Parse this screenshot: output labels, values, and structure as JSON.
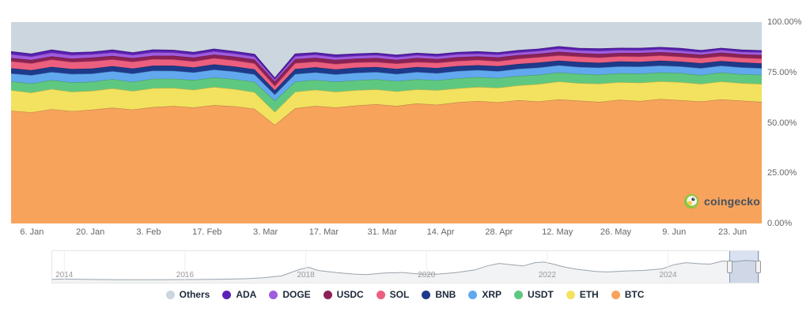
{
  "watermark": {
    "text": "coingecko"
  },
  "chart_data": {
    "type": "area",
    "stacking": "percent",
    "title": "",
    "xlabel": "",
    "ylabel": "",
    "ylim": [
      0,
      100
    ],
    "grid": false,
    "legend_position": "bottom",
    "y_axis": {
      "side": "right",
      "ticks": [
        {
          "label": "100.00%",
          "value": 100
        },
        {
          "label": "75.00%",
          "value": 75
        },
        {
          "label": "50.00%",
          "value": 50
        },
        {
          "label": "25.00%",
          "value": 25
        },
        {
          "label": "0.00%",
          "value": 0
        }
      ]
    },
    "x_axis": {
      "ticks": [
        {
          "label": "6. Jan",
          "pos": 0.0278
        },
        {
          "label": "20. Jan",
          "pos": 0.1056
        },
        {
          "label": "3. Feb",
          "pos": 0.1833
        },
        {
          "label": "17. Feb",
          "pos": 0.2611
        },
        {
          "label": "3. Mar",
          "pos": 0.3389
        },
        {
          "label": "17. Mar",
          "pos": 0.4167
        },
        {
          "label": "31. Mar",
          "pos": 0.4944
        },
        {
          "label": "14. Apr",
          "pos": 0.5722
        },
        {
          "label": "28. Apr",
          "pos": 0.65
        },
        {
          "label": "12. May",
          "pos": 0.7278
        },
        {
          "label": "26. May",
          "pos": 0.8056
        },
        {
          "label": "9. Jun",
          "pos": 0.8833
        },
        {
          "label": "23. Jun",
          "pos": 0.9611
        }
      ]
    },
    "series": [
      {
        "name": "BTC",
        "color": "#f7a35c",
        "values": [
          56.0,
          55.2,
          56.8,
          55.8,
          56.5,
          57.5,
          56.6,
          57.8,
          58.3,
          57.6,
          58.8,
          58.2,
          57.0,
          49.0,
          57.2,
          58.4,
          57.6,
          58.6,
          59.2,
          58.4,
          59.6,
          59.0,
          60.2,
          60.8,
          60.2,
          61.2,
          60.6,
          61.6,
          61.0,
          60.4,
          61.4,
          60.8,
          61.8,
          61.2,
          60.6,
          61.6,
          61.0,
          60.4
        ]
      },
      {
        "name": "ETH",
        "color": "#f2e25f",
        "values": [
          10.2,
          9.8,
          10.0,
          9.6,
          9.4,
          9.6,
          9.2,
          9.4,
          9.0,
          8.8,
          9.0,
          8.6,
          8.2,
          6.4,
          8.2,
          8.0,
          7.8,
          7.6,
          7.4,
          7.2,
          7.0,
          7.2,
          6.9,
          7.0,
          7.2,
          7.4,
          8.6,
          8.9,
          8.7,
          9.0,
          8.8,
          9.1,
          8.8,
          9.0,
          8.7,
          8.9,
          8.7,
          8.9
        ]
      },
      {
        "name": "USDT",
        "color": "#5fc880",
        "values": [
          4.4,
          4.5,
          4.4,
          4.6,
          4.5,
          4.6,
          4.5,
          4.7,
          4.6,
          4.8,
          4.7,
          4.9,
          5.1,
          5.6,
          5.0,
          4.9,
          5.0,
          4.9,
          5.0,
          5.1,
          5.0,
          4.9,
          5.0,
          4.9,
          4.8,
          4.7,
          4.6,
          4.5,
          4.6,
          4.5,
          4.4,
          4.5,
          4.4,
          4.5,
          4.4,
          4.5,
          4.4,
          4.5
        ]
      },
      {
        "name": "XRP",
        "color": "#62a8ef",
        "values": [
          3.9,
          4.1,
          4.0,
          4.2,
          4.0,
          3.9,
          4.1,
          4.0,
          3.9,
          3.8,
          3.9,
          3.8,
          3.7,
          3.0,
          3.8,
          3.7,
          3.6,
          3.7,
          3.6,
          3.5,
          3.6,
          3.5,
          3.6,
          3.5,
          3.4,
          3.5,
          3.6,
          3.5,
          3.4,
          3.5,
          3.4,
          3.5,
          3.4,
          3.3,
          3.4,
          3.3,
          3.4,
          3.3
        ]
      },
      {
        "name": "BNB",
        "color": "#1e3a8a",
        "values": [
          2.6,
          2.5,
          2.6,
          2.5,
          2.6,
          2.5,
          2.6,
          2.5,
          2.6,
          2.5,
          2.6,
          2.5,
          2.6,
          2.1,
          2.5,
          2.6,
          2.5,
          2.6,
          2.5,
          2.6,
          2.5,
          2.6,
          2.5,
          2.4,
          2.5,
          2.4,
          2.5,
          2.4,
          2.5,
          2.4,
          2.5,
          2.4,
          2.5,
          2.4,
          2.5,
          2.4,
          2.5,
          2.4
        ]
      },
      {
        "name": "SOL",
        "color": "#ec5f7e",
        "values": [
          3.5,
          3.4,
          3.6,
          3.5,
          3.6,
          3.4,
          3.3,
          3.2,
          3.1,
          3.0,
          3.1,
          3.0,
          2.9,
          2.2,
          2.9,
          2.8,
          2.7,
          2.6,
          2.5,
          2.6,
          2.5,
          2.6,
          2.5,
          2.6,
          2.5,
          2.6,
          2.7,
          2.6,
          2.7,
          2.6,
          2.5,
          2.6,
          2.5,
          2.4,
          2.5,
          2.4,
          2.3,
          2.4
        ]
      },
      {
        "name": "USDC",
        "color": "#8b2256",
        "values": [
          1.6,
          1.7,
          1.6,
          1.7,
          1.8,
          1.7,
          1.8,
          1.7,
          1.8,
          1.9,
          1.8,
          1.9,
          2.0,
          2.2,
          2.0,
          1.9,
          2.0,
          1.9,
          2.0,
          1.9,
          2.0,
          1.9,
          1.9,
          1.8,
          1.9,
          1.8,
          1.7,
          1.8,
          1.7,
          1.8,
          1.7,
          1.8,
          1.7,
          1.8,
          1.7,
          1.8,
          1.7,
          1.8
        ]
      },
      {
        "name": "DOGE",
        "color": "#a05cdf",
        "values": [
          1.8,
          1.7,
          1.8,
          1.7,
          1.6,
          1.7,
          1.6,
          1.7,
          1.6,
          1.5,
          1.6,
          1.5,
          1.4,
          1.0,
          1.4,
          1.5,
          1.4,
          1.3,
          1.4,
          1.3,
          1.4,
          1.3,
          1.4,
          1.3,
          1.4,
          1.3,
          1.4,
          1.5,
          1.4,
          1.5,
          1.4,
          1.3,
          1.4,
          1.3,
          1.2,
          1.3,
          1.2,
          1.3
        ]
      },
      {
        "name": "ADA",
        "color": "#5b21b6",
        "values": [
          1.3,
          1.2,
          1.3,
          1.2,
          1.1,
          1.2,
          1.1,
          1.2,
          1.1,
          1.0,
          1.1,
          1.0,
          1.1,
          0.7,
          1.1,
          1.0,
          1.1,
          1.0,
          0.9,
          1.0,
          0.9,
          1.0,
          0.9,
          1.0,
          0.9,
          1.0,
          0.9,
          1.0,
          0.9,
          1.0,
          0.9,
          1.0,
          0.9,
          1.0,
          0.9,
          0.8,
          0.9,
          0.8
        ]
      }
    ],
    "others": {
      "name": "Others",
      "color": "#ccd6de",
      "remainder_to": 100
    },
    "legend_order": [
      "Others",
      "ADA",
      "DOGE",
      "USDC",
      "SOL",
      "BNB",
      "XRP",
      "USDT",
      "ETH",
      "BTC"
    ],
    "navigator": {
      "range": [
        2013.8,
        2025.5
      ],
      "year_ticks": [
        {
          "label": "2014",
          "year": 2014
        },
        {
          "label": "2016",
          "year": 2016
        },
        {
          "label": "2018",
          "year": 2018
        },
        {
          "label": "2020",
          "year": 2020
        },
        {
          "label": "2022",
          "year": 2022
        },
        {
          "label": "2024",
          "year": 2024
        }
      ],
      "x": [
        2013.8,
        2014.0,
        2014.3,
        2014.6,
        2015.0,
        2015.5,
        2016.0,
        2016.5,
        2017.0,
        2017.3,
        2017.6,
        2017.9,
        2018.05,
        2018.2,
        2018.5,
        2018.8,
        2019.0,
        2019.3,
        2019.6,
        2019.9,
        2020.2,
        2020.5,
        2020.8,
        2021.0,
        2021.2,
        2021.4,
        2021.6,
        2021.8,
        2021.95,
        2022.1,
        2022.3,
        2022.5,
        2022.8,
        2023.0,
        2023.3,
        2023.6,
        2023.9,
        2024.1,
        2024.3,
        2024.5,
        2024.7,
        2024.9,
        2025.1,
        2025.3,
        2025.45
      ],
      "values": [
        0.04,
        0.05,
        0.04,
        0.03,
        0.025,
        0.022,
        0.03,
        0.04,
        0.06,
        0.1,
        0.17,
        0.42,
        0.5,
        0.38,
        0.3,
        0.24,
        0.22,
        0.28,
        0.3,
        0.24,
        0.24,
        0.3,
        0.4,
        0.55,
        0.65,
        0.6,
        0.55,
        0.68,
        0.7,
        0.62,
        0.5,
        0.42,
        0.34,
        0.32,
        0.36,
        0.38,
        0.44,
        0.6,
        0.68,
        0.64,
        0.62,
        0.74,
        0.72,
        0.76,
        0.74
      ],
      "selection": {
        "start": 0.959,
        "end": 1.0
      }
    }
  }
}
